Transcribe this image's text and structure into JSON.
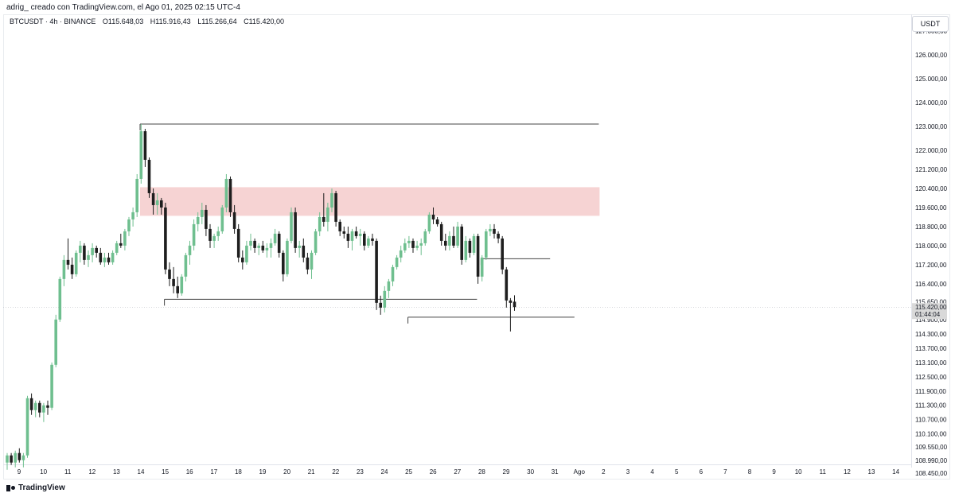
{
  "header": {
    "attribution": "adrig_ creado con TradingView.com, el Ago 01, 2025 02:15 UTC-4"
  },
  "legend": {
    "symbol": "BTCUSDT · 4h · BINANCE",
    "open": "O115.648,03",
    "high": "H115.916,43",
    "low": "L115.266,64",
    "close": "C115.420,00"
  },
  "price_axis": {
    "currency_label": "USDT",
    "ticks": [
      "127.000,00",
      "126.000,00",
      "125.000,00",
      "124.000,00",
      "123.000,00",
      "122.000,00",
      "121.200,00",
      "120.400,00",
      "119.600,00",
      "118.800,00",
      "118.000,00",
      "117.200,00",
      "116.400,00",
      "115.650,00",
      "114.900,00",
      "114.300,00",
      "113.700,00",
      "113.100,00",
      "112.500,00",
      "111.900,00",
      "111.300,00",
      "110.700,00",
      "110.100,00",
      "109.550,00",
      "108.990,00",
      "108.450,00"
    ],
    "current_price": "115.420,00",
    "countdown": "01:44:04"
  },
  "time_axis": {
    "labels": [
      "9",
      "10",
      "11",
      "12",
      "13",
      "14",
      "15",
      "16",
      "17",
      "18",
      "19",
      "20",
      "21",
      "22",
      "23",
      "24",
      "25",
      "26",
      "27",
      "28",
      "29",
      "30",
      "31",
      "Ago",
      "2",
      "3",
      "4",
      "5",
      "6",
      "7",
      "8",
      "9",
      "10",
      "11",
      "12",
      "13",
      "14"
    ]
  },
  "branding": {
    "name": "TradingView"
  },
  "colors": {
    "up": "#6fbf8f",
    "down": "#1e1e1e",
    "zone": "#f6d3d3",
    "line": "#444444"
  },
  "chart_data": {
    "type": "candlestick",
    "symbol": "BTCUSDT",
    "interval": "4h",
    "exchange": "BINANCE",
    "ylim": [
      108450,
      127300
    ],
    "horizontal_levels": [
      {
        "price": 123100,
        "from": "Jul 14",
        "to": "Aug 2"
      },
      {
        "price": 115750,
        "from": "Jul 15",
        "to": "Jul 28"
      },
      {
        "price": 115000,
        "from": "Jul 25",
        "to": "Aug 1"
      },
      {
        "price": 117450,
        "from": "Jul 28",
        "to": "Jul 31"
      }
    ],
    "zones": [
      {
        "from_price": 119250,
        "to_price": 120450,
        "from": "Jul 14",
        "to": "Aug 2"
      }
    ],
    "candles": [
      [
        108900,
        109300,
        108600,
        109200
      ],
      [
        109200,
        109300,
        108800,
        108900
      ],
      [
        108900,
        109400,
        108700,
        109300
      ],
      [
        109300,
        109500,
        108900,
        109000
      ],
      [
        109000,
        109300,
        108700,
        109200
      ],
      [
        109200,
        111700,
        109100,
        111600
      ],
      [
        111600,
        111800,
        110900,
        111100
      ],
      [
        111100,
        111500,
        110800,
        111400
      ],
      [
        111400,
        111500,
        110800,
        111000
      ],
      [
        111000,
        111400,
        110600,
        111300
      ],
      [
        111300,
        111500,
        110900,
        111200
      ],
      [
        111200,
        113100,
        111100,
        113000
      ],
      [
        113000,
        115100,
        112900,
        114900
      ],
      [
        114900,
        116700,
        114800,
        116600
      ],
      [
        116600,
        117600,
        116300,
        117400
      ],
      [
        117400,
        118300,
        117000,
        117200
      ],
      [
        117200,
        117500,
        116600,
        116800
      ],
      [
        116800,
        117800,
        116700,
        117700
      ],
      [
        117700,
        118200,
        117300,
        118000
      ],
      [
        118000,
        118100,
        117200,
        117400
      ],
      [
        117400,
        117800,
        117100,
        117600
      ],
      [
        117600,
        118100,
        117300,
        117900
      ],
      [
        117900,
        118000,
        117500,
        117700
      ],
      [
        117700,
        117900,
        117200,
        117300
      ],
      [
        117300,
        117700,
        117100,
        117500
      ],
      [
        117500,
        117700,
        117200,
        117300
      ],
      [
        117300,
        117800,
        117200,
        117700
      ],
      [
        117700,
        118200,
        117600,
        118100
      ],
      [
        118100,
        118500,
        117900,
        118000
      ],
      [
        118000,
        118700,
        117800,
        118600
      ],
      [
        118600,
        119200,
        118400,
        119100
      ],
      [
        119100,
        119600,
        118800,
        119400
      ],
      [
        119400,
        121000,
        119200,
        120800
      ],
      [
        120800,
        123100,
        120600,
        122800
      ],
      [
        122800,
        122900,
        121300,
        121600
      ],
      [
        121600,
        121700,
        120000,
        120200
      ],
      [
        120200,
        120400,
        119300,
        119700
      ],
      [
        119700,
        120200,
        119300,
        119900
      ],
      [
        119900,
        120000,
        119300,
        119600
      ],
      [
        119600,
        119800,
        116800,
        117000
      ],
      [
        117000,
        117300,
        116300,
        116600
      ],
      [
        116600,
        117100,
        116000,
        116300
      ],
      [
        116300,
        116700,
        115800,
        116000
      ],
      [
        116000,
        116800,
        115900,
        116700
      ],
      [
        116700,
        117700,
        116500,
        117600
      ],
      [
        117600,
        118200,
        117200,
        118000
      ],
      [
        118000,
        119100,
        117800,
        118900
      ],
      [
        118900,
        119400,
        118600,
        119200
      ],
      [
        119200,
        119800,
        118900,
        119500
      ],
      [
        119500,
        119700,
        118400,
        118700
      ],
      [
        118700,
        118900,
        117900,
        118200
      ],
      [
        118200,
        118500,
        117900,
        118400
      ],
      [
        118400,
        118800,
        118200,
        118600
      ],
      [
        118600,
        119700,
        118500,
        119600
      ],
      [
        119600,
        121000,
        119400,
        120800
      ],
      [
        120800,
        120900,
        119200,
        119400
      ],
      [
        119400,
        119700,
        118500,
        118700
      ],
      [
        118700,
        118900,
        117300,
        117500
      ],
      [
        117500,
        117800,
        117000,
        117300
      ],
      [
        117300,
        118200,
        117200,
        118000
      ],
      [
        118000,
        118500,
        117800,
        118200
      ],
      [
        118200,
        118300,
        117700,
        117900
      ],
      [
        117900,
        118100,
        117600,
        118000
      ],
      [
        118000,
        118200,
        117700,
        117800
      ],
      [
        117800,
        118100,
        117500,
        117900
      ],
      [
        117900,
        118300,
        117500,
        118100
      ],
      [
        118100,
        118700,
        118000,
        118500
      ],
      [
        118500,
        118600,
        117500,
        117700
      ],
      [
        117700,
        117800,
        116500,
        116800
      ],
      [
        116800,
        118300,
        116700,
        118200
      ],
      [
        118200,
        119600,
        118100,
        119400
      ],
      [
        119400,
        119600,
        117700,
        117900
      ],
      [
        117900,
        118200,
        117500,
        118000
      ],
      [
        118000,
        118300,
        117300,
        117500
      ],
      [
        117500,
        117700,
        116800,
        117000
      ],
      [
        117000,
        117800,
        116600,
        117700
      ],
      [
        117700,
        118700,
        117600,
        118600
      ],
      [
        118600,
        119400,
        118400,
        119200
      ],
      [
        119200,
        120200,
        118800,
        119000
      ],
      [
        119000,
        119800,
        118600,
        119600
      ],
      [
        119600,
        120400,
        119400,
        120200
      ],
      [
        120200,
        120300,
        118800,
        119000
      ],
      [
        119000,
        119100,
        118400,
        118600
      ],
      [
        118600,
        118800,
        118300,
        118500
      ],
      [
        118500,
        118800,
        117900,
        118200
      ],
      [
        118200,
        118700,
        117800,
        118600
      ],
      [
        118600,
        118800,
        118300,
        118400
      ],
      [
        118400,
        118700,
        118000,
        118500
      ],
      [
        118500,
        118600,
        117800,
        118000
      ],
      [
        118000,
        118400,
        117900,
        118300
      ],
      [
        118300,
        118500,
        118000,
        118200
      ],
      [
        118200,
        118300,
        115300,
        115600
      ],
      [
        115600,
        115900,
        115100,
        115400
      ],
      [
        115400,
        116300,
        115200,
        116100
      ],
      [
        116100,
        116600,
        115800,
        116500
      ],
      [
        116500,
        117200,
        116300,
        117100
      ],
      [
        117100,
        117600,
        117000,
        117500
      ],
      [
        117500,
        118000,
        117300,
        117800
      ],
      [
        117800,
        118300,
        117700,
        118100
      ],
      [
        118100,
        118400,
        117900,
        118200
      ],
      [
        118200,
        118300,
        117700,
        117900
      ],
      [
        117900,
        118200,
        117800,
        118000
      ],
      [
        118000,
        118300,
        117600,
        118100
      ],
      [
        118100,
        118700,
        118000,
        118600
      ],
      [
        118600,
        119400,
        118500,
        119300
      ],
      [
        119300,
        119600,
        118900,
        119100
      ],
      [
        119100,
        119200,
        118800,
        118900
      ],
      [
        118900,
        119000,
        118000,
        118200
      ],
      [
        118200,
        118500,
        117800,
        118000
      ],
      [
        118000,
        118600,
        117800,
        118400
      ],
      [
        118400,
        118800,
        117900,
        118000
      ],
      [
        118000,
        119000,
        117900,
        118800
      ],
      [
        118800,
        118900,
        117200,
        117400
      ],
      [
        117400,
        118400,
        117300,
        118200
      ],
      [
        118200,
        118300,
        117500,
        117700
      ],
      [
        117700,
        118500,
        117600,
        118400
      ],
      [
        118400,
        118500,
        116400,
        116700
      ],
      [
        116700,
        117600,
        116500,
        117500
      ],
      [
        117500,
        118700,
        117400,
        118600
      ],
      [
        118600,
        118900,
        118400,
        118700
      ],
      [
        118700,
        118900,
        118300,
        118500
      ],
      [
        118500,
        118600,
        118100,
        118300
      ],
      [
        118300,
        118400,
        116800,
        117000
      ],
      [
        117000,
        117100,
        115400,
        115700
      ],
      [
        115700,
        115800,
        114400,
        115600
      ],
      [
        115648.03,
        115916.43,
        115266.64,
        115420
      ]
    ]
  }
}
